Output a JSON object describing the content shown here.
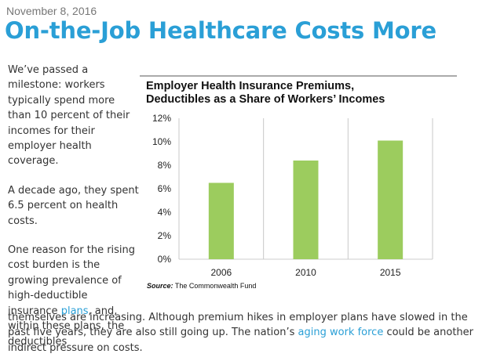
{
  "post": {
    "date": "November 8, 2016",
    "title": "On-the-Job Healthcare Costs More"
  },
  "article": {
    "p1": "We’ve passed a milestone: workers typically spend more than 10 percent of their incomes for their employer health coverage.",
    "p2": "A decade ago, they spent 6.5 percent on health costs.",
    "p3_pre": "One reason for the rising cost burden is the growing prevalence of high-deductible insurance ",
    "p3_link": "plans",
    "p3_post": ", and, within these plans, the deductibles",
    "p4_pre": "themselves are increasing. Although premium hikes in employer plans have slowed in the past five years, they are also still going up. The nation’s ",
    "p4_link": "aging work force",
    "p4_post": " could be another indirect pressure on costs."
  },
  "figure": {
    "source_label": "Source:",
    "source_text": " The Commonwealth Fund"
  },
  "chart_data": {
    "type": "bar",
    "title": "Employer Health Insurance Premiums,\nDeductibles as a Share of Workers’ Incomes",
    "categories": [
      "2006",
      "2010",
      "2015"
    ],
    "values": [
      6.5,
      8.4,
      10.1
    ],
    "ylim": [
      0,
      12
    ],
    "yticks": [
      0,
      2,
      4,
      6,
      8,
      10,
      12
    ],
    "ytick_labels": [
      "0%",
      "2%",
      "4%",
      "6%",
      "8%",
      "10%",
      "12%"
    ],
    "xlabel": "",
    "ylabel": "",
    "grid": "vertical",
    "bar_color": "#9ccc5e",
    "grid_color": "#c8c8c8"
  }
}
